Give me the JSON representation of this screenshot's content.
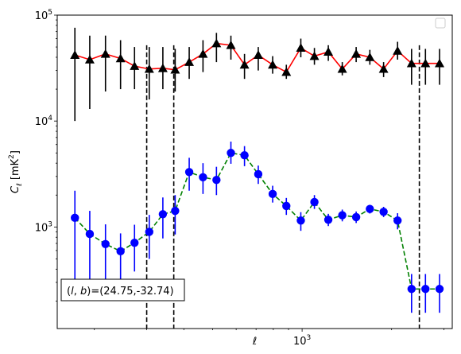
{
  "chart_data": {
    "type": "line",
    "xlabel": "ℓ",
    "ylabel": "C_ℓ  [mK²]",
    "xscale": "log",
    "yscale": "log",
    "xlim": [
      150,
      3200
    ],
    "ylim": [
      110,
      100000
    ],
    "x_tick_labels": [
      {
        "value": 1000,
        "mantissa": "10",
        "exp": "3"
      }
    ],
    "y_tick_labels": [
      {
        "value": 1000,
        "mantissa": "10",
        "exp": "3"
      },
      {
        "value": 10000,
        "mantissa": "10",
        "exp": "4"
      },
      {
        "value": 100000,
        "mantissa": "10",
        "exp": "5"
      }
    ],
    "annotation": {
      "prefix": "(l, b)",
      "text": "=(24.75,-32.74)"
    },
    "legend": {
      "position": "top-right",
      "entries": []
    },
    "vlines": [
      300,
      370,
      2480
    ],
    "series": [
      {
        "color": "#000000",
        "line_color": "#ff0000",
        "line_style": "solid",
        "marker": "triangle",
        "x": [
          172,
          193,
          218,
          245,
          273,
          306,
          340,
          374,
          417,
          464,
          515,
          576,
          640,
          712,
          796,
          885,
          990,
          1100,
          1225,
          1365,
          1520,
          1690,
          1880,
          2095,
          2335,
          2600,
          2900
        ],
        "y": [
          42000,
          38000,
          43000,
          39000,
          33000,
          31000,
          31500,
          30500,
          36000,
          43000,
          54000,
          52000,
          34000,
          42000,
          34000,
          29000,
          49000,
          41000,
          45000,
          31000,
          43000,
          40000,
          31000,
          46000,
          35000,
          35000,
          35000
        ],
        "y_low": [
          10000,
          13000,
          19000,
          20000,
          20000,
          16000,
          20000,
          19000,
          25000,
          29000,
          36000,
          38000,
          25000,
          30000,
          28000,
          25000,
          40000,
          34000,
          37000,
          27000,
          36000,
          34000,
          26000,
          38000,
          22000,
          22000,
          22000
        ],
        "y_high": [
          76000,
          64000,
          64000,
          58000,
          50000,
          50000,
          50000,
          48000,
          50000,
          58000,
          68000,
          64000,
          43000,
          50000,
          41000,
          34000,
          60000,
          49000,
          52000,
          36000,
          50000,
          47000,
          36000,
          56000,
          48000,
          48000,
          48000
        ]
      },
      {
        "color": "#0000ff",
        "line_color": "#008000",
        "line_style": "dashed",
        "marker": "circle",
        "x": [
          172,
          193,
          218,
          245,
          273,
          306,
          340,
          374,
          417,
          464,
          515,
          576,
          640,
          712,
          796,
          885,
          990,
          1100,
          1225,
          1365,
          1520,
          1690,
          1880,
          2095,
          2335,
          2600,
          2900
        ],
        "y": [
          1220,
          860,
          690,
          590,
          710,
          900,
          1320,
          1420,
          3300,
          2950,
          2780,
          5000,
          4750,
          3150,
          2050,
          1580,
          1150,
          1720,
          1170,
          1290,
          1240,
          1480,
          1390,
          1150,
          260,
          260,
          260
        ],
        "y_low": [
          290,
          280,
          300,
          320,
          380,
          500,
          780,
          850,
          2200,
          2050,
          2000,
          3950,
          3750,
          2550,
          1700,
          1300,
          920,
          1480,
          1020,
          1130,
          1090,
          1340,
          1240,
          950,
          155,
          155,
          155
        ],
        "y_high": [
          2200,
          1420,
          1060,
          870,
          1050,
          1300,
          1900,
          2000,
          4500,
          4000,
          3700,
          6400,
          5800,
          3800,
          2450,
          1880,
          1380,
          2000,
          1330,
          1460,
          1400,
          1620,
          1550,
          1350,
          360,
          360,
          360
        ]
      }
    ]
  }
}
